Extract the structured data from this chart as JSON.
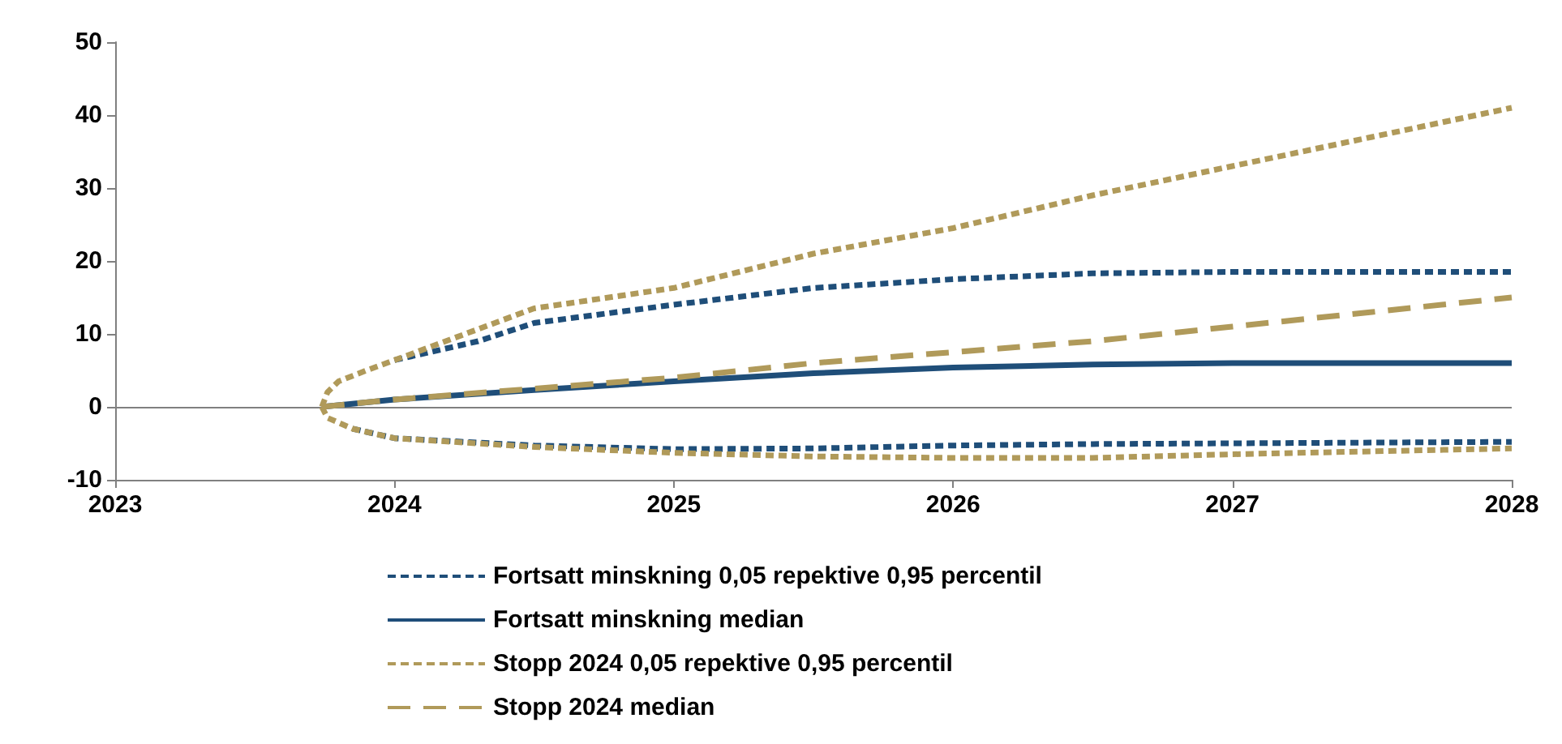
{
  "chart_data": {
    "type": "line",
    "xlim": [
      2023,
      2028
    ],
    "xticks": [
      2023,
      2024,
      2025,
      2026,
      2027,
      2028
    ],
    "ylim": [
      -10,
      50
    ],
    "yticks": [
      -10,
      0,
      10,
      20,
      30,
      40,
      50
    ],
    "grid": false,
    "legend": "bottom",
    "marker": "none",
    "ref_lines": [
      {
        "axis": "y",
        "value": 0,
        "color": "#808080",
        "line_style": "solid"
      }
    ],
    "series": [
      {
        "name": "Fortsatt minskning 0,05 repektive 0,95 percentil",
        "color": "#1f4e79",
        "line_style": "dotted",
        "x": [
          2024,
          2024.3,
          2024.5,
          2025,
          2025.5,
          2026,
          2026.5,
          2027,
          2027.5,
          2028
        ],
        "values": [
          6.4,
          9,
          11.5,
          14,
          16.3,
          17.5,
          18.3,
          18.5,
          18.5,
          18.5
        ]
      },
      {
        "color": "#1f4e79",
        "line_style": "dotted",
        "x": [
          2023.85,
          2024,
          2024.5,
          2025,
          2025.5,
          2026,
          2026.5,
          2027,
          2027.5,
          2028
        ],
        "values": [
          -3,
          -4.3,
          -5.3,
          -5.8,
          -5.7,
          -5.3,
          -5.1,
          -5,
          -4.9,
          -4.8
        ]
      },
      {
        "name": "Fortsatt minskning median",
        "color": "#1f4e79",
        "line_style": "solid",
        "x": [
          2023.74,
          2024,
          2024.5,
          2025,
          2025.5,
          2026,
          2026.5,
          2027,
          2027.5,
          2028
        ],
        "values": [
          0,
          1,
          2.3,
          3.5,
          4.6,
          5.4,
          5.8,
          6,
          6,
          6
        ]
      },
      {
        "name": "Stopp 2024 0,05 repektive 0,95 percentil",
        "color": "#b09a5a",
        "line_style": "dotted",
        "x": [
          2023.74,
          2023.76,
          2023.8,
          2023.9,
          2024,
          2024.5,
          2025,
          2025.5,
          2026,
          2026.5,
          2027,
          2027.5,
          2028
        ],
        "values": [
          0,
          2,
          3.5,
          5,
          6.4,
          13.5,
          16.3,
          21,
          24.5,
          29,
          33,
          37,
          41
        ]
      },
      {
        "color": "#b09a5a",
        "line_style": "dotted",
        "x": [
          2023.74,
          2023.76,
          2023.85,
          2024,
          2024.5,
          2025,
          2025.5,
          2026,
          2026.5,
          2027,
          2027.5,
          2028
        ],
        "values": [
          0,
          -1.5,
          -3,
          -4.3,
          -5.5,
          -6.3,
          -6.8,
          -7,
          -7,
          -6.5,
          -6.1,
          -5.7
        ]
      },
      {
        "name": "Stopp 2024 median",
        "color": "#b09a5a",
        "line_style": "dashed",
        "x": [
          2023.74,
          2024,
          2024.5,
          2025,
          2025.5,
          2026,
          2026.5,
          2027,
          2027.5,
          2028
        ],
        "values": [
          0,
          1,
          2.5,
          4,
          6,
          7.5,
          9,
          11,
          13,
          15
        ]
      }
    ]
  }
}
